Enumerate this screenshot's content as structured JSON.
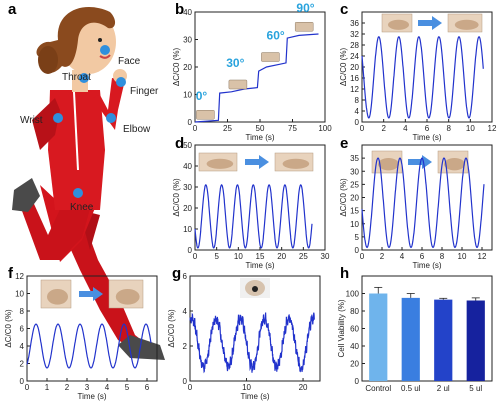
{
  "figure": {
    "panel_letters": [
      "a",
      "b",
      "c",
      "d",
      "e",
      "f",
      "g",
      "h"
    ],
    "body_labels": [
      "Face",
      "Throat",
      "Finger",
      "Wrist",
      "Elbow",
      "Knee"
    ]
  },
  "chart_data": [
    {
      "id": "b",
      "type": "line",
      "letter": "b",
      "xlabel": "Time (s)",
      "ylabel": "ΔC/C0 (%)",
      "xlim": [
        0,
        100
      ],
      "ylim": [
        0,
        40
      ],
      "xticks": [
        0,
        25,
        50,
        75,
        100
      ],
      "yticks": [
        0,
        10,
        20,
        30,
        40
      ],
      "x": [
        0,
        18,
        19,
        28,
        38,
        48,
        49,
        55,
        65,
        70,
        71,
        80,
        95
      ],
      "y": [
        0,
        0.6,
        10.5,
        11,
        12,
        12.5,
        18.5,
        20,
        21,
        21.5,
        30.5,
        31.5,
        32
      ],
      "annotations": [
        "0°",
        "30°",
        "60°",
        "90°"
      ],
      "annotation_points": [
        [
          5,
          8
        ],
        [
          31,
          20
        ],
        [
          62,
          30
        ],
        [
          85,
          40
        ]
      ],
      "inset_points": [
        [
          8,
          1
        ],
        [
          33,
          12
        ],
        [
          58,
          22
        ],
        [
          84,
          33
        ]
      ],
      "color": "#2233cc"
    },
    {
      "id": "c",
      "type": "line",
      "letter": "c",
      "xlabel": "Time (s)",
      "ylabel": "ΔC/C0 (%)",
      "xlim": [
        0,
        12
      ],
      "ylim": [
        0,
        40
      ],
      "xticks": [
        0,
        2,
        4,
        6,
        8,
        10,
        12
      ],
      "yticks": [
        0,
        4,
        8,
        12,
        16,
        20,
        24,
        28,
        32,
        36
      ],
      "wave": {
        "t0": 0,
        "t1": 11.2,
        "period": 1.85,
        "first_peak": 1.55,
        "min": 1.5,
        "max": 31
      },
      "color": "#2233cc"
    },
    {
      "id": "d",
      "type": "line",
      "letter": "d",
      "xlabel": "Time (s)",
      "ylabel": "ΔC/C0 (%)",
      "xlim": [
        0,
        30
      ],
      "ylim": [
        0,
        50
      ],
      "xticks": [
        0,
        5,
        10,
        15,
        20,
        25,
        30
      ],
      "yticks": [
        0,
        10,
        20,
        30,
        40,
        50
      ],
      "wave": {
        "t0": 0,
        "t1": 27,
        "period": 3.65,
        "first_peak": 2.5,
        "min": 1,
        "max": 31
      },
      "color": "#2233cc"
    },
    {
      "id": "e",
      "type": "line",
      "letter": "e",
      "xlabel": "Time (s)",
      "ylabel": "ΔC/C0 (%)",
      "xlim": [
        0,
        13
      ],
      "ylim": [
        0,
        40
      ],
      "xticks": [
        0,
        2,
        4,
        6,
        8,
        10,
        12
      ],
      "yticks": [
        0,
        5,
        10,
        15,
        20,
        25,
        30,
        35
      ],
      "wave": {
        "t0": 0,
        "t1": 12.2,
        "period": 2.2,
        "first_peak": 1.6,
        "min": 1,
        "max": 35
      },
      "color": "#2233cc"
    },
    {
      "id": "f",
      "type": "line",
      "letter": "f",
      "xlabel": "Time (s)",
      "ylabel": "ΔC/C0 (%)",
      "xlim": [
        0,
        6.5
      ],
      "ylim": [
        0,
        12
      ],
      "xticks": [
        0,
        1,
        2,
        3,
        4,
        5,
        6
      ],
      "yticks": [
        0,
        2,
        4,
        6,
        8,
        10,
        12
      ],
      "wave": {
        "t0": 0,
        "t1": 6.2,
        "period": 1.1,
        "first_peak": 0.45,
        "min": 1.5,
        "max": 6.5
      },
      "color": "#2233cc"
    },
    {
      "id": "g",
      "type": "line",
      "letter": "g",
      "xlabel": "Time (s)",
      "ylabel": "ΔC/C0 (%)",
      "xlim": [
        0,
        23
      ],
      "ylim": [
        0,
        6
      ],
      "xticks": [
        0,
        10,
        20
      ],
      "yticks": [
        0,
        2,
        4,
        6
      ],
      "wave": {
        "t0": 0,
        "t1": 22,
        "period": 4.3,
        "first_peak": 0.3,
        "min": 0.8,
        "max": 3.6,
        "noise": 0.25
      },
      "color": "#2233cc"
    },
    {
      "id": "h",
      "type": "bar",
      "letter": "h",
      "ylabel": "Cell Viability (%)",
      "ylim": [
        0,
        120
      ],
      "yticks": [
        0,
        20,
        40,
        60,
        80,
        100
      ],
      "categories": [
        "Control",
        "0.5 ul",
        "2 ul",
        "5 ul"
      ],
      "values": [
        100,
        95,
        93,
        92
      ],
      "errors": [
        7,
        5,
        1.5,
        3
      ],
      "colors": [
        "#6fb4ec",
        "#3a7ee0",
        "#2343c9",
        "#16229e"
      ]
    }
  ]
}
